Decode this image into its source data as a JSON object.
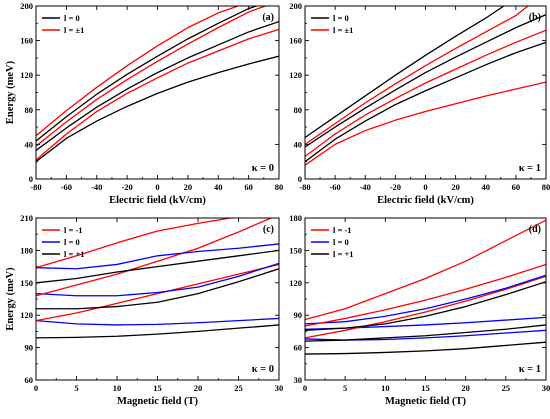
{
  "chart_data": [
    {
      "type": "line",
      "panel_label": "(a)",
      "kappa_label": "κ = 0",
      "xlabel": "Electric field (kV/cm)",
      "ylabel": "Energy (meV)",
      "xlim": [
        -80,
        80
      ],
      "ylim": [
        0,
        200
      ],
      "xticks": [
        -80,
        -60,
        -40,
        -20,
        0,
        20,
        40,
        60,
        80
      ],
      "yticks": [
        0,
        40,
        80,
        120,
        160,
        200
      ],
      "legend": [
        {
          "label": "l = 0",
          "color": "#000000"
        },
        {
          "label": "l = ±1",
          "color": "#ff0000"
        }
      ],
      "legend_position": "top-left",
      "series": [
        {
          "group": "l = 0",
          "color": "#000000",
          "x": [
            -80,
            -60,
            -40,
            -20,
            0,
            20,
            40,
            60,
            80
          ],
          "y": [
            20,
            47,
            67,
            84,
            99,
            112,
            123,
            133,
            142
          ]
        },
        {
          "group": "l = ±1",
          "color": "#ff0000",
          "x": [
            -80,
            -60,
            -40,
            -20,
            0,
            20,
            40,
            60,
            80
          ],
          "y": [
            22,
            52,
            78,
            99,
            117,
            134,
            148,
            162,
            173
          ]
        },
        {
          "group": "l = 0",
          "color": "#000000",
          "x": [
            -80,
            -60,
            -40,
            -20,
            0,
            20,
            40,
            60,
            80
          ],
          "y": [
            33,
            59,
            83,
            104,
            123,
            140,
            155,
            170,
            182
          ]
        },
        {
          "group": "l = ±1",
          "color": "#ff0000",
          "x": [
            -80,
            -60,
            -40,
            -20,
            0,
            20,
            40,
            60,
            71
          ],
          "y": [
            38,
            66,
            92,
            115,
            136,
            156,
            175,
            193,
            200
          ]
        },
        {
          "group": "l = 0",
          "color": "#000000",
          "x": [
            -80,
            -60,
            -40,
            -20,
            0,
            20,
            40,
            60,
            65
          ],
          "y": [
            44,
            72,
            98,
            121,
            142,
            162,
            180,
            197,
            200
          ]
        },
        {
          "group": "l = ±1",
          "color": "#ff0000",
          "x": [
            -80,
            -60,
            -40,
            -20,
            0,
            20,
            40,
            53
          ],
          "y": [
            50,
            79,
            106,
            131,
            154,
            175,
            192,
            200
          ]
        }
      ]
    },
    {
      "type": "line",
      "panel_label": "(b)",
      "kappa_label": "κ = 1",
      "xlabel": "Electric field (kV/cm)",
      "ylabel": "",
      "xlim": [
        -80,
        80
      ],
      "ylim": [
        0,
        200
      ],
      "xticks": [
        -80,
        -60,
        -40,
        -20,
        0,
        20,
        40,
        60,
        80
      ],
      "yticks": [
        0,
        40,
        80,
        120,
        160,
        200
      ],
      "legend": [
        {
          "label": "l = 0",
          "color": "#000000"
        },
        {
          "label": "l = ±1",
          "color": "#ff0000"
        }
      ],
      "legend_position": "top-left",
      "series": [
        {
          "group": "l = ±1",
          "color": "#ff0000",
          "x": [
            -80,
            -60,
            -40,
            -20,
            0,
            20,
            40,
            60,
            80
          ],
          "y": [
            16,
            40,
            56,
            68,
            78,
            87,
            96,
            104,
            112
          ]
        },
        {
          "group": "l = 0",
          "color": "#000000",
          "x": [
            -80,
            -60,
            -40,
            -20,
            0,
            20,
            40,
            60,
            80
          ],
          "y": [
            20,
            46,
            67,
            86,
            102,
            117,
            132,
            146,
            158
          ]
        },
        {
          "group": "l = ±1",
          "color": "#ff0000",
          "x": [
            -80,
            -60,
            -40,
            -20,
            0,
            20,
            40,
            60,
            80
          ],
          "y": [
            26,
            52,
            74,
            93,
            111,
            127,
            143,
            158,
            172
          ]
        },
        {
          "group": "l = 0",
          "color": "#000000",
          "x": [
            -80,
            -60,
            -40,
            -20,
            0,
            20,
            40,
            60,
            80
          ],
          "y": [
            37,
            60,
            82,
            103,
            123,
            141,
            158,
            175,
            190
          ]
        },
        {
          "group": "l = ±1",
          "color": "#ff0000",
          "x": [
            -80,
            -60,
            -40,
            -20,
            0,
            20,
            40,
            60,
            68
          ],
          "y": [
            40,
            64,
            88,
            110,
            131,
            151,
            170,
            189,
            200
          ]
        },
        {
          "group": "l = 0",
          "color": "#000000",
          "x": [
            -80,
            -60,
            -40,
            -20,
            0,
            20,
            40,
            52
          ],
          "y": [
            48,
            72,
            96,
            120,
            143,
            165,
            186,
            200
          ]
        }
      ]
    },
    {
      "type": "line",
      "panel_label": "(c)",
      "kappa_label": "κ = 0",
      "xlabel": "Magnetic field (T)",
      "ylabel": "Energy (meV)",
      "xlim": [
        0,
        30
      ],
      "ylim": [
        60,
        210
      ],
      "xticks": [
        0,
        5,
        10,
        15,
        20,
        25,
        30
      ],
      "yticks": [
        60,
        90,
        120,
        150,
        180,
        210
      ],
      "legend": [
        {
          "label": "l = -1",
          "color": "#ff0000"
        },
        {
          "label": "l = 0",
          "color": "#0000ff"
        },
        {
          "label": "l = +1",
          "color": "#000000"
        }
      ],
      "legend_position": "top-left",
      "series": [
        {
          "group": "l = +1",
          "color": "#000000",
          "x": [
            0,
            5,
            10,
            15,
            20,
            25,
            30
          ],
          "y": [
            99,
            99.5,
            100.5,
            102.5,
            105,
            108,
            111
          ]
        },
        {
          "group": "l = 0",
          "color": "#0000ff",
          "x": [
            0,
            5,
            10,
            15,
            20,
            25,
            30
          ],
          "y": [
            115,
            112,
            111,
            111.5,
            113,
            115,
            117
          ]
        },
        {
          "group": "l = -1",
          "color": "#ff0000",
          "x": [
            0,
            5,
            10,
            15,
            20,
            25,
            30
          ],
          "y": [
            115,
            122,
            131,
            140,
            149,
            158,
            167
          ]
        },
        {
          "group": "l = +1",
          "color": "#000000",
          "x": [
            0,
            5,
            10,
            15,
            20,
            25,
            30
          ],
          "y": [
            126,
            126,
            128,
            132,
            140,
            151,
            163
          ]
        },
        {
          "group": "l = 0",
          "color": "#0000ff",
          "x": [
            0,
            5,
            10,
            15,
            20,
            25,
            30
          ],
          "y": [
            140,
            138,
            138,
            141,
            146,
            156,
            168
          ]
        },
        {
          "group": "l = -1",
          "color": "#ff0000",
          "x": [
            0,
            5,
            10,
            15,
            20,
            25,
            29
          ],
          "y": [
            138,
            148,
            158,
            170,
            182,
            197,
            210
          ]
        },
        {
          "group": "l = +1",
          "color": "#000000",
          "x": [
            0,
            5,
            10,
            15,
            20,
            25,
            30
          ],
          "y": [
            150,
            154,
            160,
            165,
            170,
            175,
            180
          ]
        },
        {
          "group": "l = 0",
          "color": "#0000ff",
          "x": [
            0,
            5,
            10,
            15,
            20,
            25,
            30
          ],
          "y": [
            164,
            163,
            167,
            175,
            179,
            182,
            186
          ]
        },
        {
          "group": "l = -1",
          "color": "#ff0000",
          "x": [
            0,
            5,
            10,
            15,
            20,
            24
          ],
          "y": [
            164,
            175,
            187,
            198,
            205,
            210
          ]
        }
      ]
    },
    {
      "type": "line",
      "panel_label": "(d)",
      "kappa_label": "κ = 1",
      "xlabel": "Magnetic field (T)",
      "ylabel": "",
      "xlim": [
        0,
        30
      ],
      "ylim": [
        30,
        180
      ],
      "xticks": [
        0,
        5,
        10,
        15,
        20,
        25,
        30
      ],
      "yticks": [
        30,
        60,
        90,
        120,
        150,
        180
      ],
      "legend": [
        {
          "label": "l = -1",
          "color": "#ff0000"
        },
        {
          "label": "l = 0",
          "color": "#0000ff"
        },
        {
          "label": "l = +1",
          "color": "#000000"
        }
      ],
      "legend_position": "top-left",
      "series": [
        {
          "group": "l = +1",
          "color": "#000000",
          "x": [
            0,
            5,
            10,
            15,
            20,
            25,
            30
          ],
          "y": [
            54,
            54.5,
            55.5,
            57,
            59,
            62,
            65
          ]
        },
        {
          "group": "l = 0",
          "color": "#0000ff",
          "x": [
            0,
            5,
            10,
            15,
            20,
            25,
            30
          ],
          "y": [
            68,
            67,
            67.5,
            69,
            71,
            73.5,
            76
          ]
        },
        {
          "group": "l = +1",
          "color": "#000000",
          "x": [
            0,
            5,
            10,
            15,
            20,
            25,
            30
          ],
          "y": [
            66,
            67,
            69,
            71,
            74,
            77,
            81
          ]
        },
        {
          "group": "l = 0",
          "color": "#0000ff",
          "x": [
            0,
            5,
            10,
            15,
            20,
            25,
            30
          ],
          "y": [
            77,
            78,
            79.5,
            81,
            83,
            85.5,
            88
          ]
        },
        {
          "group": "l = -1",
          "color": "#ff0000",
          "x": [
            0,
            5,
            10,
            15,
            20,
            25,
            30
          ],
          "y": [
            69,
            76,
            84,
            93,
            103,
            114,
            126
          ]
        },
        {
          "group": "l = +1",
          "color": "#000000",
          "x": [
            0,
            5,
            10,
            15,
            20,
            25,
            30
          ],
          "y": [
            76,
            78,
            82,
            89,
            98,
            109,
            121
          ]
        },
        {
          "group": "l = 0",
          "color": "#0000ff",
          "x": [
            0,
            5,
            10,
            15,
            20,
            25,
            30
          ],
          "y": [
            82,
            84,
            89,
            96,
            105,
            115,
            127
          ]
        },
        {
          "group": "l = -1",
          "color": "#ff0000",
          "x": [
            0,
            5,
            10,
            15,
            20,
            25,
            30
          ],
          "y": [
            80,
            87,
            95,
            104,
            114,
            125,
            137
          ]
        },
        {
          "group": "l = -1",
          "color": "#ff0000",
          "x": [
            0,
            5,
            10,
            15,
            20,
            25,
            30
          ],
          "y": [
            86,
            96,
            110,
            124,
            140,
            159,
            178
          ]
        }
      ]
    }
  ]
}
